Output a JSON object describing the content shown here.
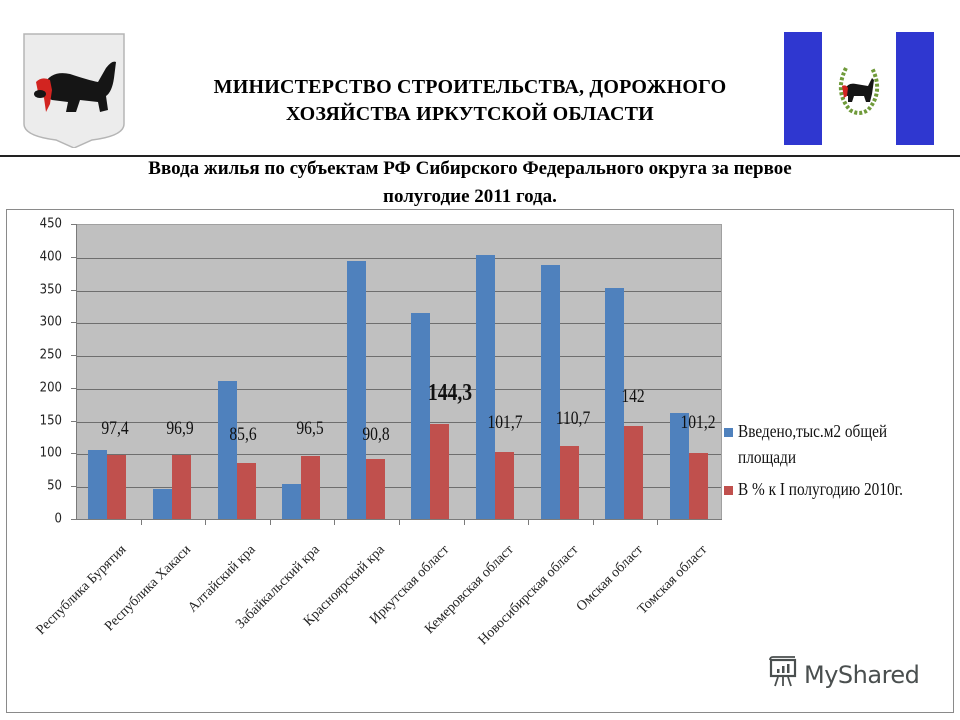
{
  "header": {
    "ministry_line1": "МИНИСТЕРСТВО СТРОИТЕЛЬСТВА, ДОРОЖНОГО",
    "ministry_line2": "ХОЗЯЙСТВА ИРКУТСКОЙ ОБЛАСТИ",
    "coat_of_arms_icon": "irkutsk-coat-of-arms-icon",
    "flag_icon": "irkutsk-oblast-flag-icon"
  },
  "slide": {
    "subtitle_line1": "Ввода жилья по субъектам РФ Сибирского Федерального округа за первое",
    "subtitle_line2": "полугодие 2011 года."
  },
  "colors": {
    "series1": "#4f81bd",
    "series2": "#c0504d",
    "plot_bg": "#c0c0c0",
    "flag_blue": "#2f37d0"
  },
  "watermark": {
    "text": "MyShared",
    "icon": "presentation-board-icon"
  },
  "chart_data": {
    "type": "bar",
    "title": "Ввода жилья по субъектам РФ Сибирского Федерального округа за первое полугодие 2011 года.",
    "xlabel": "",
    "ylabel": "",
    "ylim": [
      0,
      450
    ],
    "yticks": [
      "0",
      "50",
      "100",
      "150",
      "200",
      "250",
      "300",
      "350",
      "400",
      "450"
    ],
    "grid": true,
    "legend_position": "right",
    "categories": [
      "Республика Бурятия",
      "Республика Хакасия",
      "Алтайский край",
      "Забайкальский край",
      "Красноярский край",
      "Иркутская область",
      "Кемеровская область",
      "Новосибирская область",
      "Омская область",
      "Томская область"
    ],
    "category_labels_visible": [
      "Республика Бурятия",
      "Республика Хакаси",
      "Алтайский кра",
      "Забайкальский кра",
      "Красноярский кра",
      "Иркутская област",
      "Кемеровская област",
      "Новосибирская област",
      "Омская област",
      "Томская област"
    ],
    "series": [
      {
        "name": "Введено,тыс.м2 общей площади",
        "legend_line1": "Введено,тыс.м2 общей",
        "legend_line2": "площади",
        "color": "#4f81bd",
        "values": [
          105,
          46,
          210,
          54,
          393,
          315,
          402,
          388,
          352,
          162
        ]
      },
      {
        "name": "В % к I полугодию 2010г.",
        "color": "#c0504d",
        "values": [
          97.4,
          96.9,
          85.6,
          96.5,
          90.8,
          144.3,
          101.7,
          110.7,
          142,
          101.2
        ]
      }
    ],
    "annotations": [
      "97,4",
      "96,9",
      "85,6",
      "96,5",
      "90,8",
      "144,3",
      "101,7",
      "110,7",
      "142",
      "101,2"
    ]
  }
}
